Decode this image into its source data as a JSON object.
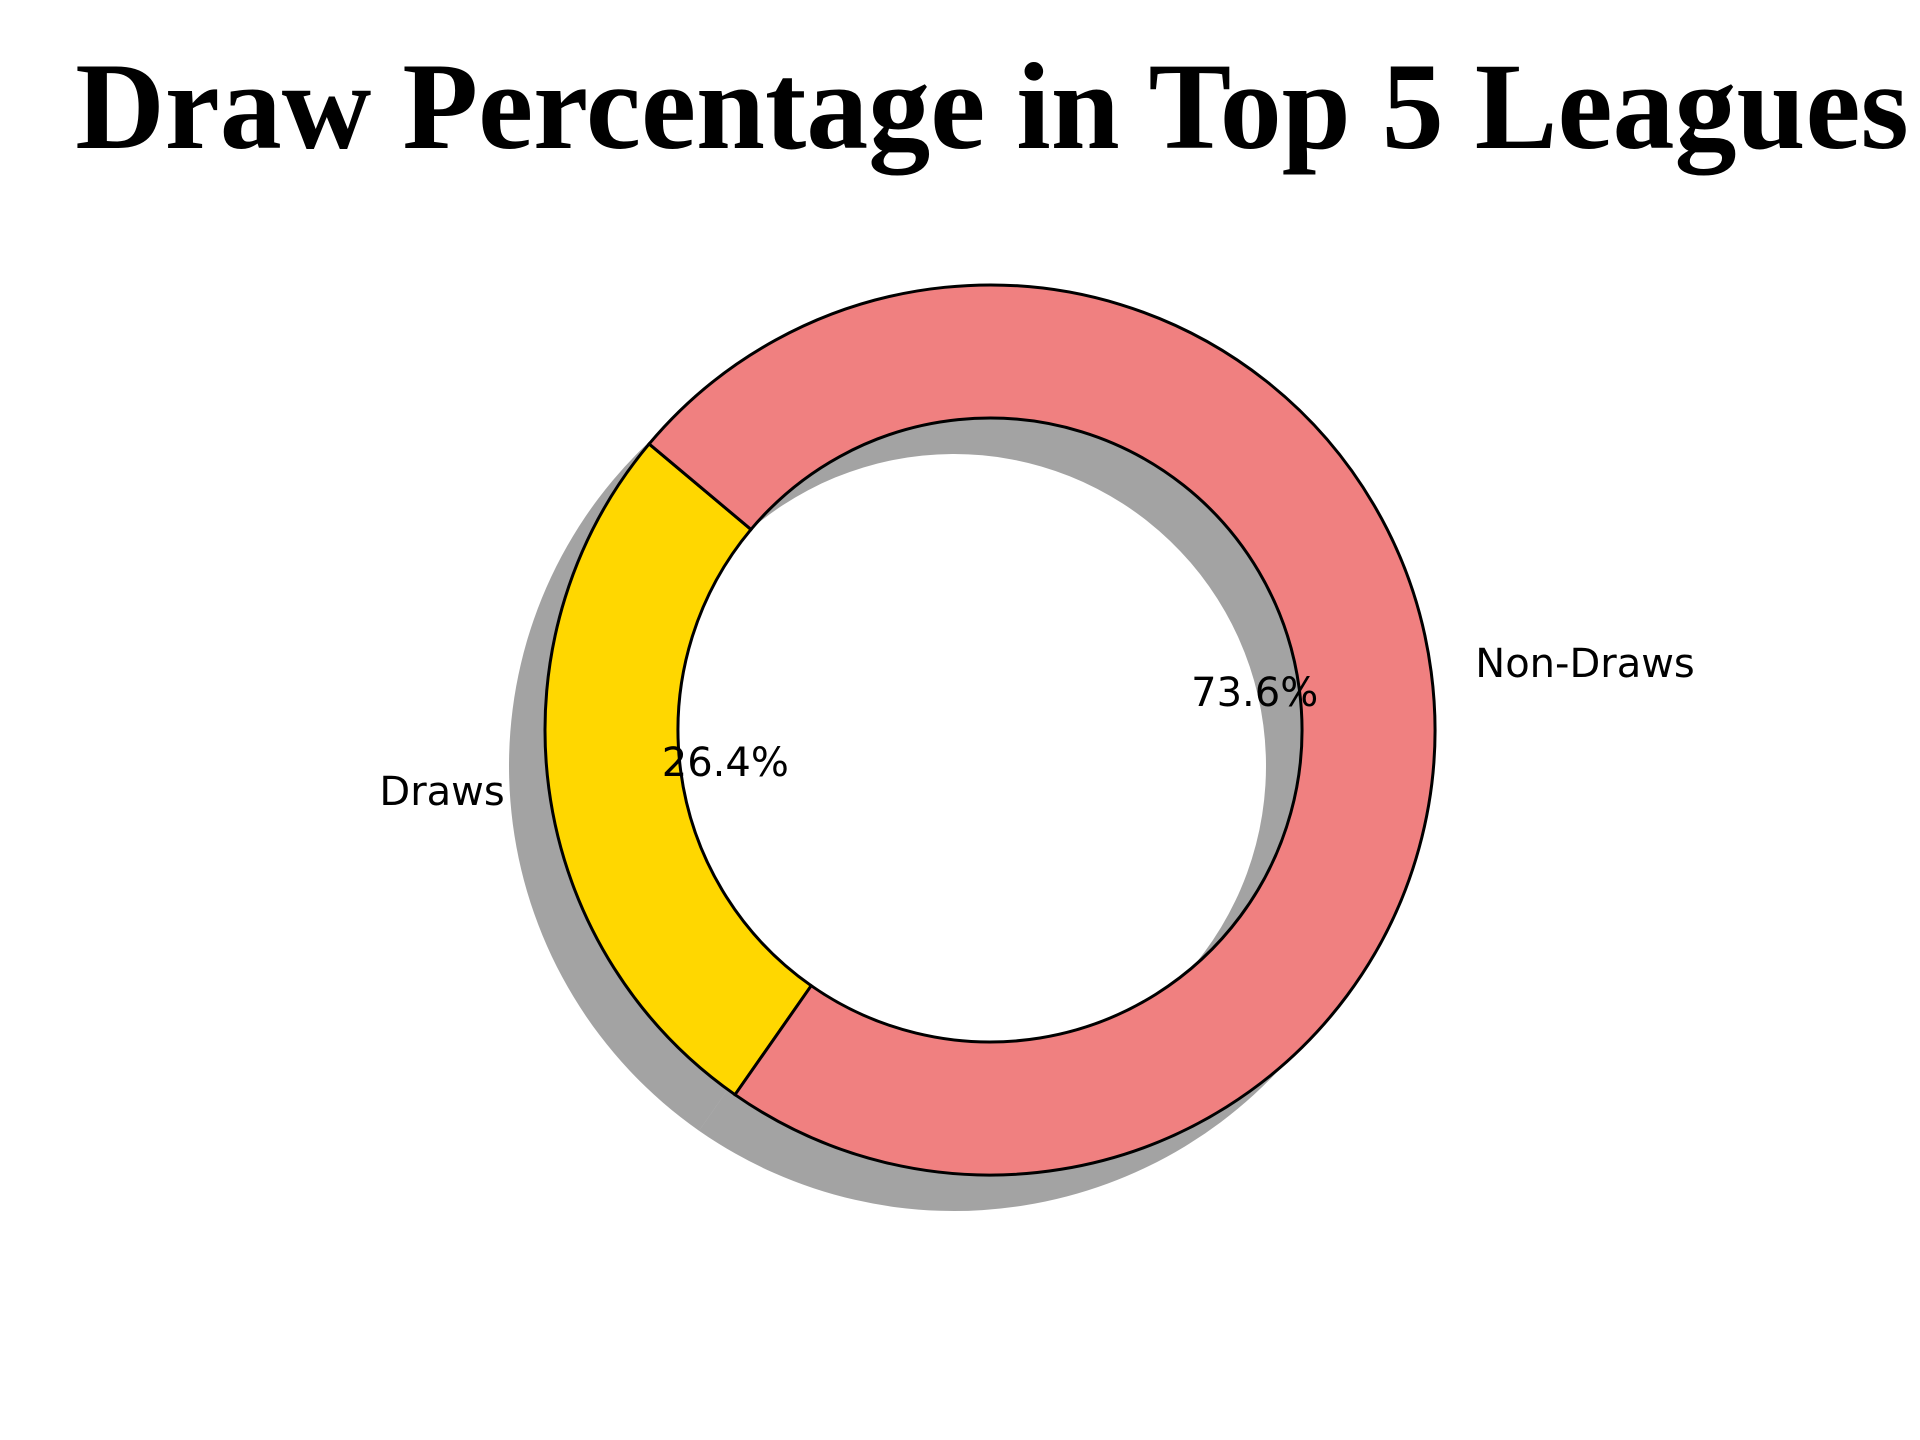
{
  "chart_data": {
    "type": "pie",
    "subtype": "donut",
    "title": "Draw Percentage in Top 5 Leagues",
    "categories": [
      "Draws",
      "Non-Draws"
    ],
    "values": [
      26.4,
      73.6
    ],
    "value_labels": [
      "26.4%",
      "73.6%"
    ],
    "colors": [
      "#FFD700",
      "#F08080"
    ],
    "edge_color": "#000000",
    "shadow": true,
    "legend": "none"
  }
}
